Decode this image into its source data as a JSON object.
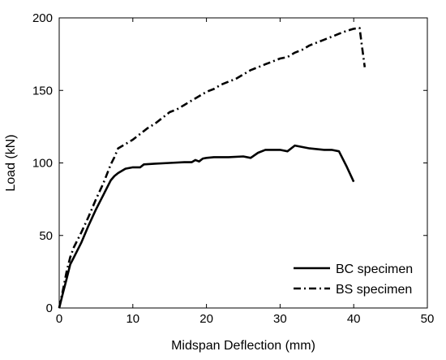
{
  "chart_data": {
    "type": "line",
    "title": "",
    "xlabel": "Midspan Deflection (mm)",
    "ylabel": "Load (kN)",
    "xlim": [
      0,
      50
    ],
    "ylim": [
      0,
      200
    ],
    "xticks": [
      0,
      10,
      20,
      30,
      40,
      50
    ],
    "yticks": [
      0,
      50,
      100,
      150,
      200
    ],
    "grid": false,
    "legend_position": "bottom-right",
    "series": [
      {
        "name": "BC specimen",
        "style": "solid",
        "color": "#000000",
        "x": [
          0,
          0.5,
          1.0,
          1.5,
          2.0,
          3.0,
          4.0,
          5.0,
          6.0,
          7.0,
          7.5,
          8.0,
          9.0,
          10.0,
          11.0,
          11.5,
          13.0,
          15.0,
          17.0,
          18.0,
          18.5,
          19.0,
          19.5,
          20.0,
          21.0,
          23.0,
          25.0,
          26.0,
          27.0,
          28.0,
          30.0,
          31.0,
          32.0,
          34.0,
          36.0,
          37.0,
          38.0,
          39.0,
          40.0
        ],
        "y": [
          0,
          10,
          20,
          30,
          35,
          45,
          57,
          68,
          78,
          88,
          91,
          93,
          96,
          97,
          97,
          99,
          99.5,
          100,
          100.5,
          100.5,
          102,
          101,
          103,
          103.5,
          104,
          104,
          104.5,
          103.5,
          107,
          109,
          109,
          108,
          112,
          110,
          109,
          109,
          108,
          98,
          87
        ]
      },
      {
        "name": "BS specimen",
        "style": "dashdot",
        "color": "#000000",
        "x": [
          0,
          0.5,
          1.0,
          1.5,
          2.0,
          3.0,
          4.0,
          5.0,
          6.0,
          7.0,
          7.5,
          8.0,
          9.0,
          10.0,
          11.0,
          12.0,
          13.0,
          14.0,
          15.0,
          16.0,
          17.0,
          18.0,
          19.0,
          20.0,
          21.0,
          22.0,
          23.0,
          24.0,
          25.0,
          26.0,
          27.0,
          28.0,
          29.0,
          30.0,
          31.0,
          32.0,
          33.0,
          34.0,
          35.0,
          36.0,
          37.0,
          38.0,
          39.0,
          40.0,
          40.8,
          41.0,
          41.5
        ],
        "y": [
          0,
          12,
          25,
          35,
          42,
          52,
          63,
          75,
          86,
          99,
          104,
          110,
          113,
          116,
          120,
          124,
          127,
          131,
          135,
          137,
          140,
          143,
          146,
          149,
          151,
          154,
          156,
          158,
          161,
          164,
          166,
          168,
          170,
          172,
          173,
          176,
          178,
          181,
          183,
          185,
          187,
          189,
          191,
          192.5,
          193,
          185,
          166
        ]
      }
    ]
  }
}
